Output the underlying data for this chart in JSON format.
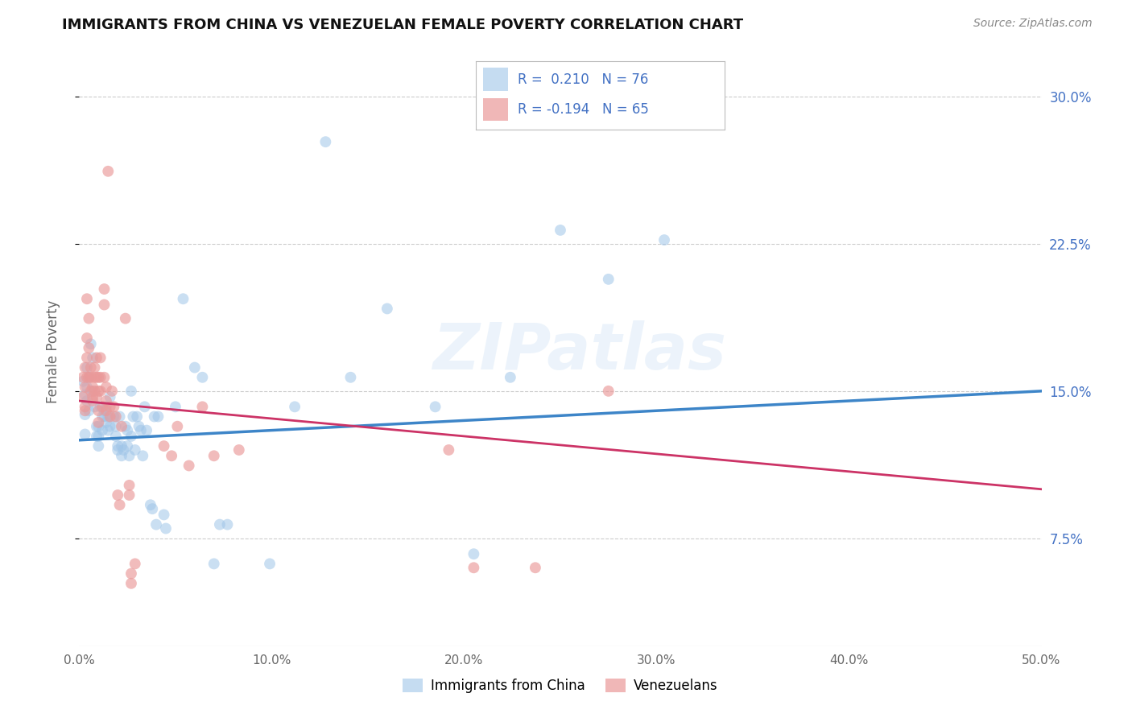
{
  "title": "IMMIGRANTS FROM CHINA VS VENEZUELAN FEMALE POVERTY CORRELATION CHART",
  "source": "Source: ZipAtlas.com",
  "ylabel": "Female Poverty",
  "yticks": [
    0.075,
    0.15,
    0.225,
    0.3
  ],
  "ytick_labels": [
    "7.5%",
    "15.0%",
    "22.5%",
    "30.0%"
  ],
  "xlim": [
    0.0,
    0.5
  ],
  "ylim": [
    0.02,
    0.32
  ],
  "legend_label_blue": "Immigrants from China",
  "legend_label_pink": "Venezuelans",
  "blue_color": "#9fc5e8",
  "pink_color": "#ea9999",
  "blue_line_color": "#3d85c8",
  "pink_line_color": "#cc3366",
  "watermark": "ZIPatlas",
  "blue_points": [
    [
      0.002,
      0.155
    ],
    [
      0.003,
      0.148
    ],
    [
      0.003,
      0.138
    ],
    [
      0.003,
      0.128
    ],
    [
      0.004,
      0.152
    ],
    [
      0.004,
      0.162
    ],
    [
      0.004,
      0.145
    ],
    [
      0.005,
      0.14
    ],
    [
      0.005,
      0.157
    ],
    [
      0.006,
      0.174
    ],
    [
      0.007,
      0.167
    ],
    [
      0.007,
      0.15
    ],
    [
      0.008,
      0.142
    ],
    [
      0.009,
      0.132
    ],
    [
      0.009,
      0.127
    ],
    [
      0.01,
      0.132
    ],
    [
      0.01,
      0.127
    ],
    [
      0.01,
      0.122
    ],
    [
      0.011,
      0.142
    ],
    [
      0.012,
      0.13
    ],
    [
      0.012,
      0.137
    ],
    [
      0.013,
      0.14
    ],
    [
      0.013,
      0.137
    ],
    [
      0.014,
      0.134
    ],
    [
      0.014,
      0.142
    ],
    [
      0.015,
      0.13
    ],
    [
      0.015,
      0.137
    ],
    [
      0.016,
      0.147
    ],
    [
      0.016,
      0.132
    ],
    [
      0.018,
      0.137
    ],
    [
      0.019,
      0.132
    ],
    [
      0.019,
      0.127
    ],
    [
      0.02,
      0.122
    ],
    [
      0.02,
      0.12
    ],
    [
      0.021,
      0.137
    ],
    [
      0.022,
      0.122
    ],
    [
      0.022,
      0.117
    ],
    [
      0.023,
      0.12
    ],
    [
      0.024,
      0.132
    ],
    [
      0.025,
      0.13
    ],
    [
      0.025,
      0.122
    ],
    [
      0.026,
      0.117
    ],
    [
      0.027,
      0.15
    ],
    [
      0.027,
      0.127
    ],
    [
      0.028,
      0.137
    ],
    [
      0.029,
      0.12
    ],
    [
      0.03,
      0.137
    ],
    [
      0.031,
      0.132
    ],
    [
      0.032,
      0.13
    ],
    [
      0.033,
      0.117
    ],
    [
      0.034,
      0.142
    ],
    [
      0.035,
      0.13
    ],
    [
      0.037,
      0.092
    ],
    [
      0.038,
      0.09
    ],
    [
      0.039,
      0.137
    ],
    [
      0.04,
      0.082
    ],
    [
      0.041,
      0.137
    ],
    [
      0.044,
      0.087
    ],
    [
      0.045,
      0.08
    ],
    [
      0.05,
      0.142
    ],
    [
      0.054,
      0.197
    ],
    [
      0.06,
      0.162
    ],
    [
      0.064,
      0.157
    ],
    [
      0.07,
      0.062
    ],
    [
      0.073,
      0.082
    ],
    [
      0.077,
      0.082
    ],
    [
      0.099,
      0.062
    ],
    [
      0.112,
      0.142
    ],
    [
      0.128,
      0.277
    ],
    [
      0.141,
      0.157
    ],
    [
      0.16,
      0.192
    ],
    [
      0.185,
      0.142
    ],
    [
      0.205,
      0.067
    ],
    [
      0.224,
      0.157
    ],
    [
      0.25,
      0.232
    ],
    [
      0.275,
      0.207
    ],
    [
      0.304,
      0.227
    ]
  ],
  "pink_points": [
    [
      0.002,
      0.157
    ],
    [
      0.002,
      0.147
    ],
    [
      0.003,
      0.14
    ],
    [
      0.003,
      0.162
    ],
    [
      0.003,
      0.152
    ],
    [
      0.003,
      0.142
    ],
    [
      0.004,
      0.177
    ],
    [
      0.004,
      0.197
    ],
    [
      0.004,
      0.167
    ],
    [
      0.004,
      0.157
    ],
    [
      0.005,
      0.187
    ],
    [
      0.005,
      0.172
    ],
    [
      0.005,
      0.157
    ],
    [
      0.006,
      0.162
    ],
    [
      0.006,
      0.157
    ],
    [
      0.006,
      0.15
    ],
    [
      0.007,
      0.145
    ],
    [
      0.007,
      0.152
    ],
    [
      0.007,
      0.147
    ],
    [
      0.008,
      0.162
    ],
    [
      0.008,
      0.157
    ],
    [
      0.008,
      0.15
    ],
    [
      0.009,
      0.167
    ],
    [
      0.009,
      0.157
    ],
    [
      0.009,
      0.147
    ],
    [
      0.01,
      0.14
    ],
    [
      0.01,
      0.134
    ],
    [
      0.01,
      0.157
    ],
    [
      0.01,
      0.15
    ],
    [
      0.011,
      0.157
    ],
    [
      0.011,
      0.167
    ],
    [
      0.011,
      0.15
    ],
    [
      0.012,
      0.142
    ],
    [
      0.013,
      0.202
    ],
    [
      0.013,
      0.194
    ],
    [
      0.013,
      0.157
    ],
    [
      0.014,
      0.152
    ],
    [
      0.014,
      0.145
    ],
    [
      0.014,
      0.14
    ],
    [
      0.015,
      0.262
    ],
    [
      0.016,
      0.142
    ],
    [
      0.016,
      0.137
    ],
    [
      0.017,
      0.15
    ],
    [
      0.018,
      0.142
    ],
    [
      0.019,
      0.137
    ],
    [
      0.02,
      0.097
    ],
    [
      0.021,
      0.092
    ],
    [
      0.022,
      0.132
    ],
    [
      0.024,
      0.187
    ],
    [
      0.026,
      0.102
    ],
    [
      0.026,
      0.097
    ],
    [
      0.027,
      0.057
    ],
    [
      0.027,
      0.052
    ],
    [
      0.029,
      0.062
    ],
    [
      0.044,
      0.122
    ],
    [
      0.048,
      0.117
    ],
    [
      0.051,
      0.132
    ],
    [
      0.057,
      0.112
    ],
    [
      0.064,
      0.142
    ],
    [
      0.07,
      0.117
    ],
    [
      0.083,
      0.12
    ],
    [
      0.192,
      0.12
    ],
    [
      0.205,
      0.06
    ],
    [
      0.237,
      0.06
    ],
    [
      0.275,
      0.15
    ]
  ]
}
